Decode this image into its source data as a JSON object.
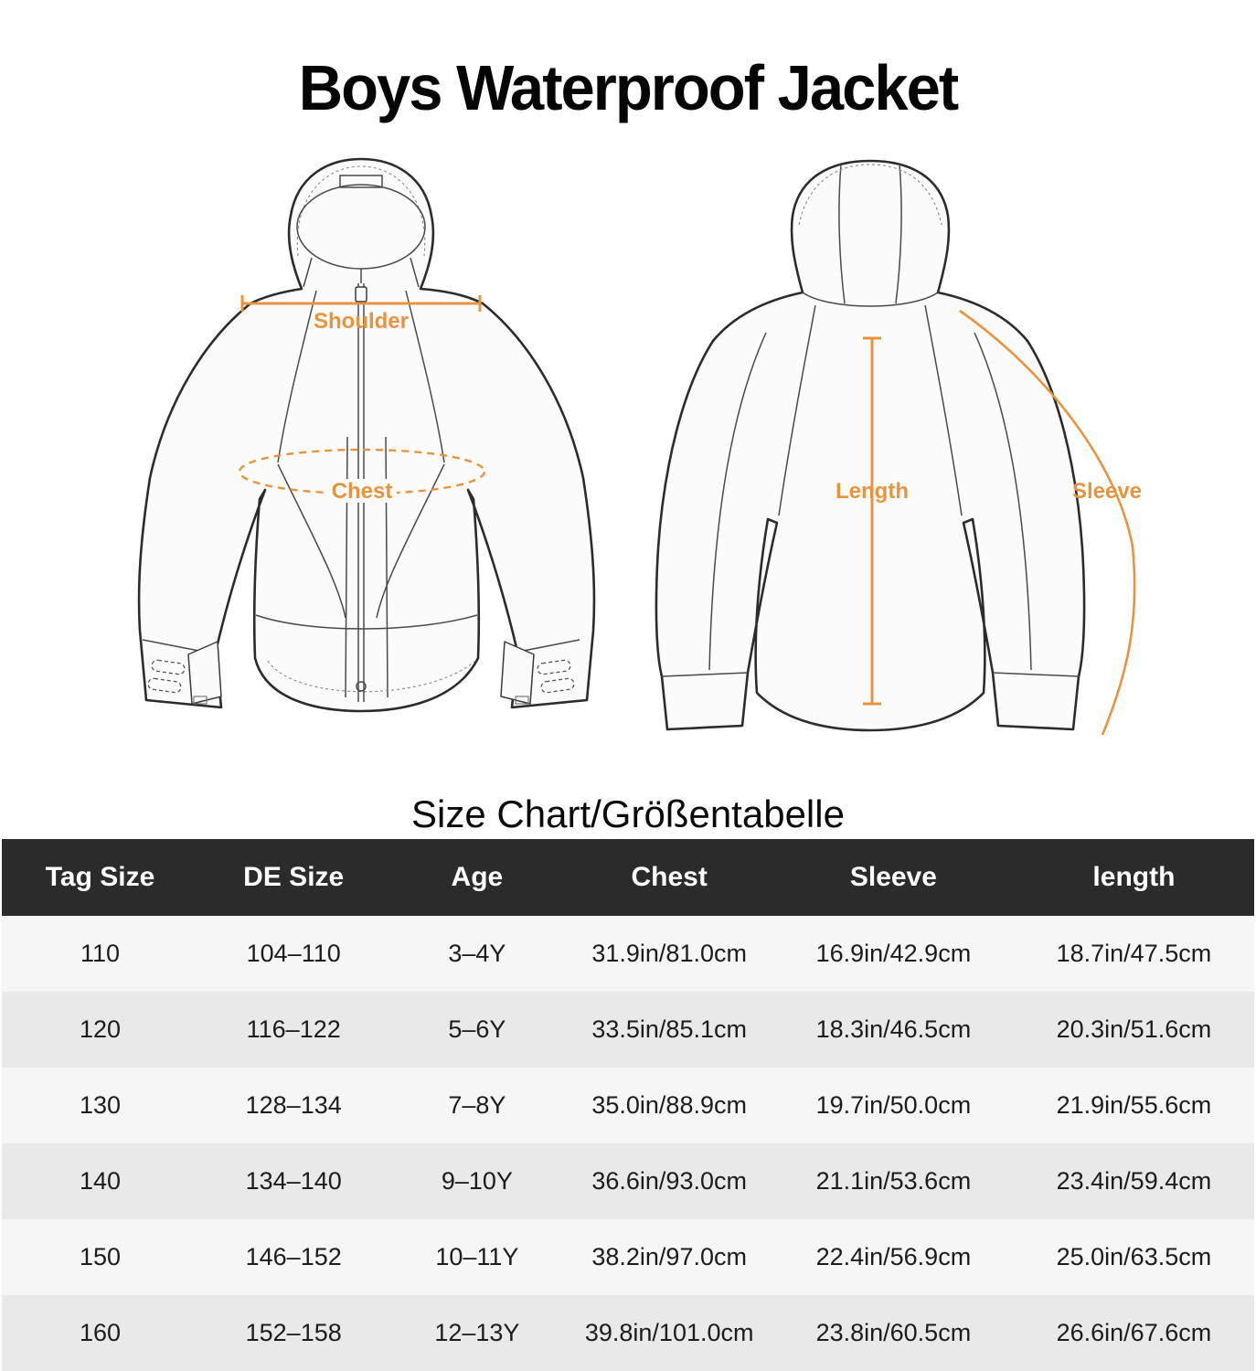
{
  "title": "Boys Waterproof Jacket",
  "section_heading": "Size Chart/Größentabelle",
  "diagram": {
    "front_labels": {
      "shoulder": "Shoulder",
      "chest": "Chest"
    },
    "back_labels": {
      "length": "Length",
      "sleeve": "Sleeve"
    }
  },
  "colors": {
    "accent_orange": "#E8943C",
    "header_bg": "#2B2B2B",
    "row_light": "#F6F6F6",
    "row_dark": "#E9E9E9"
  },
  "table": {
    "columns": [
      "Tag Size",
      "DE Size",
      "Age",
      "Chest",
      "Sleeve",
      "length"
    ],
    "rows": [
      [
        "110",
        "104–110",
        "3–4Y",
        "31.9in/81.0cm",
        "16.9in/42.9cm",
        "18.7in/47.5cm"
      ],
      [
        "120",
        "116–122",
        "5–6Y",
        "33.5in/85.1cm",
        "18.3in/46.5cm",
        "20.3in/51.6cm"
      ],
      [
        "130",
        "128–134",
        "7–8Y",
        "35.0in/88.9cm",
        "19.7in/50.0cm",
        "21.9in/55.6cm"
      ],
      [
        "140",
        "134–140",
        "9–10Y",
        "36.6in/93.0cm",
        "21.1in/53.6cm",
        "23.4in/59.4cm"
      ],
      [
        "150",
        "146–152",
        "10–11Y",
        "38.2in/97.0cm",
        "22.4in/56.9cm",
        "25.0in/63.5cm"
      ],
      [
        "160",
        "152–158",
        "12–13Y",
        "39.8in/101.0cm",
        "23.8in/60.5cm",
        "26.6in/67.6cm"
      ]
    ]
  }
}
